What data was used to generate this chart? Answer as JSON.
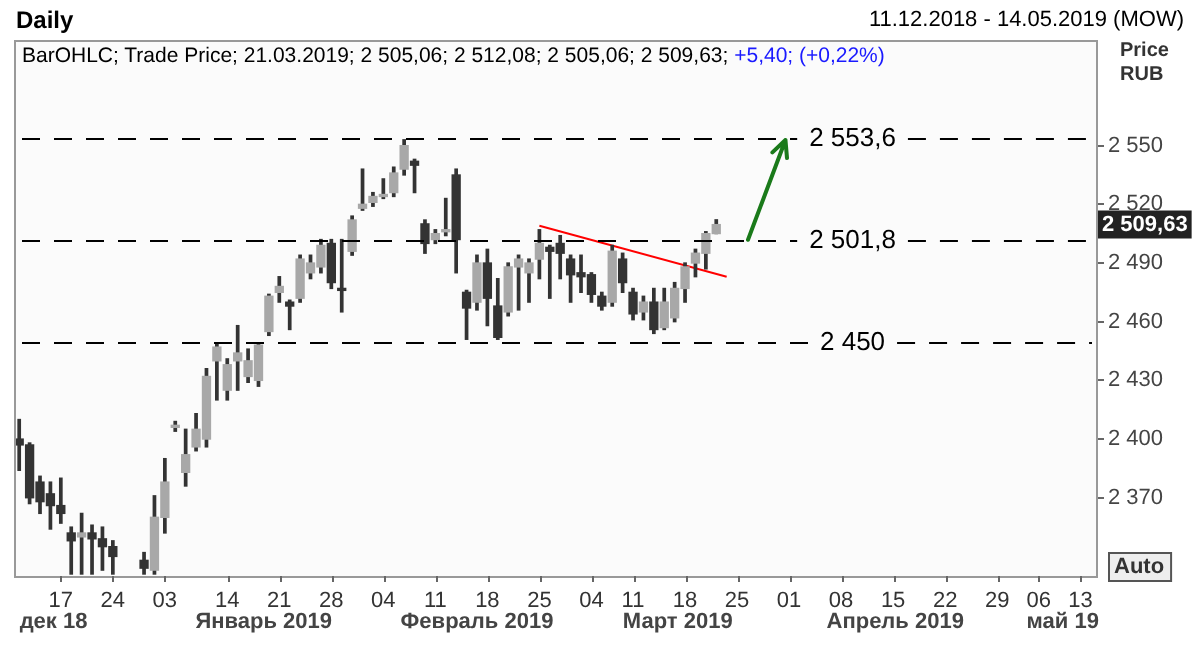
{
  "chart_data": {
    "type": "candlestick",
    "title": "Daily",
    "subtitle": "BarOHLC; Trade Price; 21.03.2019; 2 505,06; 2 512,08; 2 505,06; 2 509,63;",
    "ylabel": "Price RUB",
    "color": "#333333",
    "colors": [
      "#333333",
      "#333333",
      "#333333",
      "#333333",
      "#333333",
      "#333333",
      "#a8a8a8",
      "#333333",
      "#333333",
      "#333333",
      null,
      null,
      "#333333",
      "#a8a8a8",
      "#a8a8a8",
      "#a8a8a8",
      "#a8a8a8",
      "#a8a8a8",
      "#a8a8a8",
      "#a8a8a8",
      "#a8a8a8",
      "#a8a8a8",
      "#a8a8a8",
      "#a8a8a8",
      "#a8a8a8",
      "#a8a8a8",
      "#333333",
      "#a8a8a8",
      "#a8a8a8",
      "#a8a8a8",
      "#333333",
      "#333333",
      "#a8a8a8",
      "#a8a8a8",
      "#a8a8a8",
      "#a8a8a8",
      "#a8a8a8",
      "#a8a8a8",
      "#333333",
      "#333333",
      "#a8a8a8",
      "#a8a8a8",
      "#333333",
      "#333333",
      "#a8a8a8",
      "#333333",
      "#333333",
      "#a8a8a8",
      "#a8a8a8",
      "#a8a8a8",
      "#a8a8a8",
      "#333333",
      "#333333",
      "#333333",
      "#333333",
      "#333333",
      "#333333",
      "#a8a8a8",
      "#333333",
      "#333333",
      "#a8a8a8",
      "#333333",
      "#a8a8a8",
      "#a8a8a8",
      "#a8a8a8",
      "#a8a8a8",
      "#a8a8a8",
      "#a8a8a8",
      null,
      null,
      null,
      null,
      null,
      null,
      null,
      null,
      null,
      null,
      null,
      null,
      null,
      null,
      null,
      null,
      null,
      null,
      null,
      null,
      null,
      null,
      null,
      null,
      null,
      null,
      null,
      null,
      null,
      null,
      null,
      null,
      null,
      null,
      null,
      null
    ],
    "categories": [
      null,
      null,
      null,
      null,
      "17",
      null,
      null,
      null,
      null,
      "24",
      null,
      null,
      null,
      null,
      "03",
      null,
      null,
      null,
      null,
      null,
      "14",
      null,
      null,
      null,
      null,
      "21",
      null,
      null,
      null,
      null,
      "28",
      null,
      null,
      null,
      null,
      "04",
      null,
      null,
      null,
      null,
      "11",
      null,
      null,
      null,
      null,
      "18",
      null,
      null,
      null,
      null,
      "25",
      null,
      null,
      null,
      null,
      "04",
      null,
      null,
      null,
      "11",
      null,
      null,
      null,
      null,
      "18",
      null,
      null,
      null,
      null,
      "25",
      null,
      null,
      null,
      null,
      "01",
      null,
      null,
      null,
      null,
      "08",
      null,
      null,
      null,
      null,
      "15",
      null,
      null,
      null,
      null,
      "22",
      null,
      null,
      null,
      null,
      "29",
      null,
      null,
      null,
      "06",
      null,
      null,
      null,
      "13",
      null
    ],
    "ohlc": [
      [
        2400,
        2410,
        2384,
        2397
      ],
      [
        2397,
        2398,
        2367,
        2370
      ],
      [
        2378,
        2381,
        2362,
        2368
      ],
      [
        2372,
        2378,
        2354,
        2366
      ],
      [
        2366,
        2380,
        2357,
        2362
      ],
      [
        2352,
        2355,
        2331,
        2348
      ],
      [
        2350,
        2362,
        2331,
        2352
      ],
      [
        2352,
        2356,
        2331,
        2349
      ],
      [
        2349,
        2355,
        2333,
        2345
      ],
      [
        2345,
        2348,
        2331,
        2340
      ],
      null,
      null,
      [
        2338,
        2342,
        2331,
        2334
      ],
      [
        2333,
        2371,
        2331,
        2360
      ],
      [
        2360,
        2390,
        2352,
        2378
      ],
      [
        2406,
        2409,
        2404,
        2407
      ],
      [
        2383,
        2405,
        2376,
        2392
      ],
      [
        2396,
        2413,
        2394,
        2405
      ],
      [
        2400,
        2436,
        2396,
        2432
      ],
      [
        2440,
        2449,
        2420,
        2447
      ],
      [
        2425,
        2441,
        2420,
        2438
      ],
      [
        2440,
        2458,
        2425,
        2444
      ],
      [
        2432,
        2446,
        2429,
        2440
      ],
      [
        2430,
        2449,
        2427,
        2448
      ],
      [
        2455,
        2474,
        2453,
        2473
      ],
      [
        2475,
        2483,
        2470,
        2478
      ],
      [
        2470,
        2471,
        2456,
        2468
      ],
      [
        2472,
        2494,
        2470,
        2492
      ],
      [
        2485,
        2494,
        2482,
        2490
      ],
      [
        2488,
        2502,
        2485,
        2499
      ],
      [
        2500,
        2502,
        2477,
        2480
      ],
      [
        2477,
        2502,
        2465,
        2476
      ],
      [
        2496,
        2514,
        2494,
        2512
      ],
      [
        2518,
        2538,
        2517,
        2520
      ],
      [
        2521,
        2526,
        2519,
        2524
      ],
      [
        2524,
        2533,
        2523,
        2525
      ],
      [
        2526,
        2539,
        2524,
        2536
      ],
      [
        2538,
        2553,
        2535,
        2550
      ],
      [
        2542,
        2543,
        2526,
        2540
      ],
      [
        2510,
        2512,
        2495,
        2500
      ],
      [
        2502,
        2507,
        2500,
        2505
      ],
      [
        2506,
        2523,
        2504,
        2507
      ],
      [
        2535,
        2538,
        2485,
        2502
      ],
      [
        2475,
        2476,
        2451,
        2467
      ],
      [
        2470,
        2494,
        2466,
        2490
      ],
      [
        2490,
        2497,
        2458,
        2472
      ],
      [
        2468,
        2482,
        2451,
        2452
      ],
      [
        2465,
        2490,
        2463,
        2488
      ],
      [
        2488,
        2494,
        2466,
        2492
      ],
      [
        2485,
        2492,
        2470,
        2490
      ],
      [
        2492,
        2507,
        2482,
        2500
      ],
      [
        2498,
        2499,
        2472,
        2496
      ],
      [
        2500,
        2504,
        2482,
        2495
      ],
      [
        2492,
        2494,
        2470,
        2484
      ],
      [
        2485,
        2494,
        2475,
        2483
      ],
      [
        2484,
        2485,
        2470,
        2474
      ],
      [
        2473,
        2475,
        2466,
        2468
      ],
      [
        2470,
        2499,
        2468,
        2496
      ],
      [
        2492,
        2495,
        2475,
        2480
      ],
      [
        2475,
        2477,
        2461,
        2464
      ],
      [
        2465,
        2473,
        2461,
        2470
      ],
      [
        2470,
        2477,
        2454,
        2456
      ],
      [
        2457,
        2477,
        2456,
        2470
      ],
      [
        2462,
        2480,
        2460,
        2477
      ],
      [
        2477,
        2490,
        2470,
        2488
      ],
      [
        2490,
        2497,
        2483,
        2495
      ],
      [
        2495,
        2506,
        2487,
        2505
      ],
      [
        2505.06,
        2512.08,
        2505.06,
        2509.63
      ],
      null,
      null,
      null,
      null,
      null,
      null,
      null,
      null,
      null,
      null,
      null,
      null,
      null,
      null,
      null,
      null,
      null,
      null,
      null,
      null,
      null,
      null,
      null,
      null,
      null,
      null,
      null,
      null,
      null,
      null,
      null,
      null,
      null,
      null,
      null,
      null
    ],
    "series": [
      {
        "type": "line",
        "color": "#ff0000",
        "values": [
          null,
          null,
          null,
          null,
          null,
          null,
          null,
          null,
          null,
          null,
          null,
          null,
          null,
          null,
          null,
          null,
          null,
          null,
          null,
          null,
          null,
          null,
          null,
          null,
          null,
          null,
          null,
          null,
          null,
          null,
          null,
          null,
          null,
          null,
          null,
          null,
          null,
          null,
          null,
          null,
          null,
          null,
          null,
          null,
          null,
          null,
          null,
          null,
          null,
          null,
          2509,
          null,
          null,
          null,
          null,
          null,
          null,
          null,
          null,
          null,
          null,
          null,
          null,
          null,
          null,
          null,
          null,
          null,
          2483,
          null,
          null,
          null,
          null,
          null,
          null,
          null,
          null,
          null,
          null,
          null,
          null,
          null,
          null,
          null,
          null,
          null,
          null,
          null,
          null,
          null,
          null,
          null,
          null,
          null,
          null,
          null,
          null,
          null,
          null,
          null,
          null,
          null,
          null,
          null
        ]
      }
    ],
    "ylim": [
      2330,
      2604
    ],
    "yticks": [
      {
        "value": 2370,
        "label": "2 370"
      },
      {
        "value": 2400,
        "label": "2 400"
      },
      {
        "value": 2430,
        "label": "2 430"
      },
      {
        "value": 2460,
        "label": "2 460"
      },
      {
        "value": 2490,
        "label": "2 490"
      },
      {
        "value": 2520,
        "label": "2 520"
      },
      {
        "value": 2550,
        "label": "2 550"
      }
    ],
    "ref_lines": [
      {
        "axis": "y",
        "value": 2553.6,
        "label": "2 553,6"
      },
      {
        "axis": "y",
        "value": 2501.8,
        "label": "2 501,8"
      },
      {
        "axis": "y",
        "value": 2450,
        "label": "2 450"
      }
    ],
    "annotations": [
      "11.12.2018 - 14.05.2019 (MOW)",
      "+5,40; (+0,22%)",
      "2 509,63",
      "Auto",
      "дек 18",
      "Январь 2019",
      "Февраль 2019",
      "Март 2019",
      "Апрель 2019",
      "май 19"
    ],
    "grid": false,
    "legend": false
  }
}
